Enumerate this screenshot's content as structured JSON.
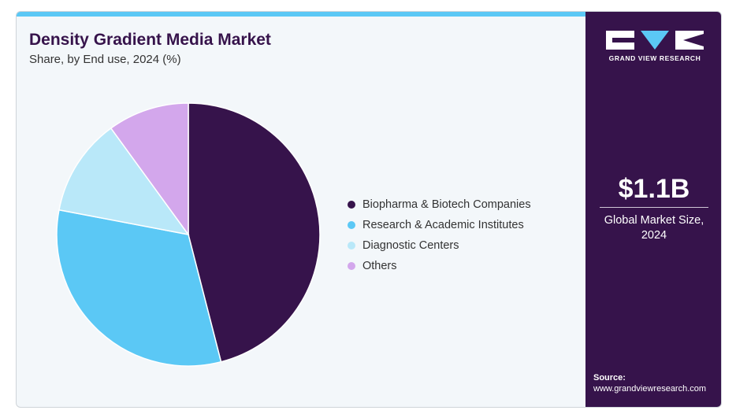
{
  "header": {
    "title": "Density Gradient Media Market",
    "subtitle": "Share, by End use, 2024 (%)"
  },
  "chart_data": {
    "type": "pie",
    "categories": [
      "Biopharma & Biotech Companies",
      "Research & Academic Institutes",
      "Diagnostic Centers",
      "Others"
    ],
    "values": [
      46,
      32,
      12,
      10
    ],
    "colors": [
      "#36134b",
      "#5bc8f5",
      "#b9e8f9",
      "#d3a7ec"
    ],
    "legend_position": "right",
    "start": "top",
    "direction": "clockwise"
  },
  "sidebar": {
    "brand": "GRAND VIEW RESEARCH",
    "market_size": "$1.1B",
    "market_size_caption_line1": "Global Market Size,",
    "market_size_caption_line2": "2024",
    "source_label": "Source:",
    "source_url": "www.grandviewresearch.com",
    "background_color": "#36134b"
  }
}
